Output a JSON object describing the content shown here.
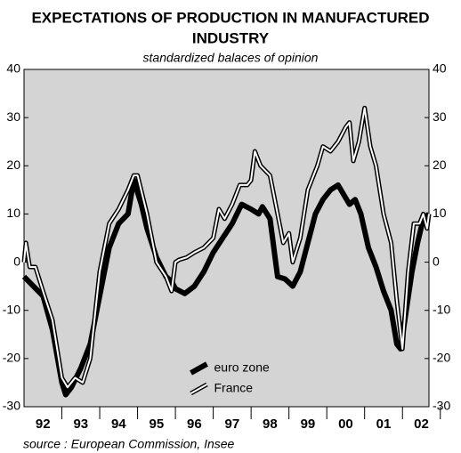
{
  "chart_data": {
    "type": "line",
    "title": [
      "EXPECTATIONS OF PRODUCTION IN MANUFACTURED",
      "INDUSTRY"
    ],
    "subtitle": "standardized balaces of opinion",
    "source": "source : European Commission, Insee",
    "xlim": [
      1992,
      2002.7
    ],
    "xticks": [
      {
        "value": 1992.5,
        "label": "92"
      },
      {
        "value": 1993.5,
        "label": "93"
      },
      {
        "value": 1994.5,
        "label": "94"
      },
      {
        "value": 1995.5,
        "label": "95"
      },
      {
        "value": 1996.5,
        "label": "96"
      },
      {
        "value": 1997.5,
        "label": "97"
      },
      {
        "value": 1998.5,
        "label": "98"
      },
      {
        "value": 1999.5,
        "label": "99"
      },
      {
        "value": 2000.5,
        "label": "00"
      },
      {
        "value": 2001.5,
        "label": "01"
      },
      {
        "value": 2002.5,
        "label": "02"
      }
    ],
    "ylim": [
      -30,
      40
    ],
    "yticks": [
      -30,
      -20,
      -10,
      0,
      10,
      20,
      30,
      40
    ],
    "legend": "lower center",
    "background": "#d4d4d4",
    "series": [
      {
        "name": "euro zone",
        "color": "#000000",
        "style": "thick",
        "x": [
          1992.0,
          1992.25,
          1992.5,
          1992.75,
          1993.0,
          1993.1,
          1993.25,
          1993.5,
          1993.75,
          1994.0,
          1994.25,
          1994.5,
          1994.75,
          1994.9,
          1995.1,
          1995.25,
          1995.5,
          1995.75,
          1995.9,
          1996.0,
          1996.25,
          1996.5,
          1996.75,
          1997.0,
          1997.25,
          1997.5,
          1997.75,
          1998.0,
          1998.2,
          1998.3,
          1998.5,
          1998.7,
          1998.9,
          1999.1,
          1999.3,
          1999.5,
          1999.7,
          1999.9,
          2000.1,
          2000.3,
          2000.45,
          2000.6,
          2000.75,
          2000.9,
          2001.1,
          2001.3,
          2001.5,
          2001.7,
          2001.85,
          2001.95,
          2002.1,
          2002.25,
          2002.4,
          2002.55,
          2002.7
        ],
        "values": [
          -3,
          -5,
          -7,
          -14,
          -25,
          -27.5,
          -26,
          -22,
          -17,
          -7,
          3,
          8,
          10,
          17,
          12,
          7,
          1,
          -3,
          -4,
          -5.5,
          -6.5,
          -5,
          -2,
          2,
          5,
          8,
          12,
          11,
          10,
          11.5,
          9,
          -3,
          -3.5,
          -5,
          -2,
          4,
          10,
          13,
          15,
          16,
          14,
          12,
          13,
          10,
          3,
          -1,
          -6,
          -10,
          -17,
          -18,
          -10,
          -2,
          4,
          9,
          10
        ]
      },
      {
        "name": "France",
        "color": "#ffffff",
        "style": "double",
        "x": [
          1992.0,
          1992.05,
          1992.15,
          1992.3,
          1992.5,
          1992.75,
          1993.0,
          1993.15,
          1993.35,
          1993.55,
          1993.75,
          1994.0,
          1994.25,
          1994.5,
          1994.75,
          1994.9,
          1995.0,
          1995.25,
          1995.5,
          1995.75,
          1995.9,
          1996.0,
          1996.1,
          1996.3,
          1996.5,
          1996.75,
          1997.0,
          1997.15,
          1997.3,
          1997.5,
          1997.7,
          1997.9,
          1998.0,
          1998.1,
          1998.25,
          1998.5,
          1998.7,
          1998.85,
          1999.0,
          1999.1,
          1999.3,
          1999.5,
          1999.75,
          1999.9,
          2000.1,
          2000.3,
          2000.5,
          2000.6,
          2000.7,
          2000.85,
          2001.0,
          2001.15,
          2001.3,
          2001.5,
          2001.7,
          2001.85,
          2002.0,
          2002.15,
          2002.3,
          2002.45,
          2002.55,
          2002.65,
          2002.7
        ],
        "values": [
          0,
          4,
          -1,
          -1,
          -6,
          -12,
          -24,
          -26,
          -24,
          -25,
          -20,
          -2,
          8,
          11,
          15,
          18,
          18,
          10,
          0,
          -3,
          -6,
          0,
          0.5,
          1,
          2,
          3,
          5,
          11,
          9,
          12,
          16,
          16,
          17,
          23,
          20,
          18,
          10,
          4,
          6,
          0,
          5,
          15,
          20,
          24,
          23,
          25,
          28,
          29,
          21,
          25,
          32,
          24,
          20,
          10,
          4,
          -8,
          -18,
          -2,
          8,
          8,
          10,
          7,
          10
        ]
      }
    ]
  }
}
